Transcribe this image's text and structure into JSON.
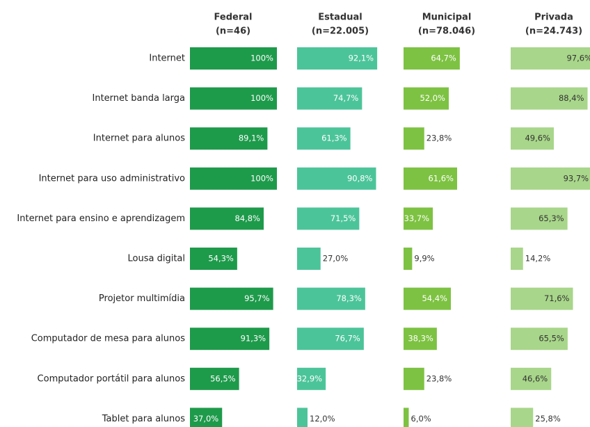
{
  "chart_data": {
    "type": "bar",
    "categories": [
      "Internet",
      "Internet banda larga",
      "Internet para alunos",
      "Internet para uso administrativo",
      "Internet para ensino e aprendizagem",
      "Lousa digital",
      "Projetor multimídia",
      "Computador de mesa para alunos",
      "Computador portátil para alunos",
      "Tablet para alunos"
    ],
    "series": [
      {
        "name": "Federal",
        "subtitle": "(n=46)",
        "color": "#1e9a4b",
        "label_color": "#ffffff",
        "values": [
          100,
          100,
          89.1,
          100,
          84.8,
          54.3,
          95.7,
          91.3,
          56.5,
          37.0
        ],
        "value_labels": [
          "100%",
          "100%",
          "89,1%",
          "100%",
          "84,8%",
          "54,3%",
          "95,7%",
          "91,3%",
          "56,5%",
          "37,0%"
        ]
      },
      {
        "name": "Estadual",
        "subtitle": "(n=22.005)",
        "color": "#4cc49a",
        "label_color": "#ffffff",
        "values": [
          92.1,
          74.7,
          61.3,
          90.8,
          71.5,
          27.0,
          78.3,
          76.7,
          32.9,
          12.0
        ],
        "value_labels": [
          "92,1%",
          "74,7%",
          "61,3%",
          "90,8%",
          "71,5%",
          "27,0%",
          "78,3%",
          "76,7%",
          "32,9%",
          "12,0%"
        ]
      },
      {
        "name": "Municipal",
        "subtitle": "(n=78.046)",
        "color": "#7dc242",
        "label_color": "#ffffff",
        "values": [
          64.7,
          52.0,
          23.8,
          61.6,
          33.7,
          9.9,
          54.4,
          38.3,
          23.8,
          6.0
        ],
        "value_labels": [
          "64,7%",
          "52,0%",
          "23,8%",
          "61,6%",
          "33,7%",
          "9,9%",
          "54,4%",
          "38,3%",
          "23,8%",
          "6,0%"
        ]
      },
      {
        "name": "Privada",
        "subtitle": "(n=24.743)",
        "color": "#a8d68a",
        "label_color": "#333333",
        "values": [
          97.6,
          88.4,
          49.6,
          93.7,
          65.3,
          14.2,
          71.6,
          65.5,
          46.6,
          25.8
        ],
        "value_labels": [
          "97,6%",
          "88,4%",
          "49,6%",
          "93,7%",
          "65,3%",
          "14,2%",
          "71,6%",
          "65,5%",
          "46,6%",
          "25,8%"
        ]
      }
    ]
  }
}
